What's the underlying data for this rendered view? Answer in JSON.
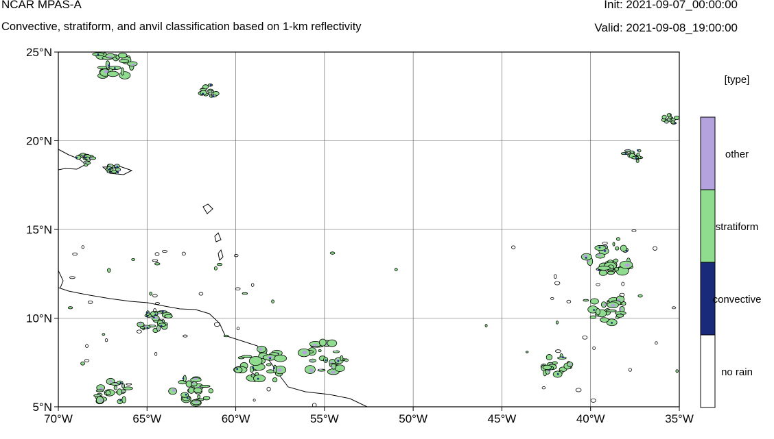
{
  "header": {
    "title": "NCAR MPAS-A",
    "subtitle": "Convective, stratiform, and anvil classification based on 1-km reflectivity",
    "init": "Init: 2021-09-07_00:00:00",
    "valid": "Valid: 2021-09-08_19:00:00"
  },
  "map": {
    "lon_range": [
      -70,
      -35
    ],
    "lat_range": [
      5,
      25
    ],
    "lon_ticks": [
      {
        "value": -70,
        "label": "70°W"
      },
      {
        "value": -65,
        "label": "65°W"
      },
      {
        "value": -60,
        "label": "60°W"
      },
      {
        "value": -55,
        "label": "55°W"
      },
      {
        "value": -50,
        "label": "50°W"
      },
      {
        "value": -45,
        "label": "45°W"
      },
      {
        "value": -40,
        "label": "40°W"
      },
      {
        "value": -35,
        "label": "35°W"
      }
    ],
    "lat_ticks": [
      {
        "value": 25,
        "label": "25°N"
      },
      {
        "value": 20,
        "label": "20°N"
      },
      {
        "value": 15,
        "label": "15°N"
      },
      {
        "value": 10,
        "label": "10°N"
      },
      {
        "value": 5,
        "label": "5°N"
      }
    ],
    "grid": true,
    "colors": {
      "stratiform": "#8fdc8f",
      "other": "#b3a2dd",
      "convective": "#1a2a7a",
      "contour": "#000000"
    },
    "features": [
      {
        "name": "hispaniola-cells",
        "lon": -67.0,
        "lat": 24.3,
        "size": 1.2,
        "type": "stratiform"
      },
      {
        "name": "virgin-islands-cells",
        "lon": -61.5,
        "lat": 22.8,
        "size": 0.5,
        "type": "stratiform"
      },
      {
        "name": "lesser-antilles-cells",
        "lon": -68.5,
        "lat": 18.9,
        "size": 0.5,
        "type": "stratiform"
      },
      {
        "name": "puerto-rico-cells",
        "lon": -66.8,
        "lat": 18.4,
        "size": 0.4,
        "type": "stratiform"
      },
      {
        "name": "guiana-coast-cluster",
        "lon": -58.5,
        "lat": 7.3,
        "size": 1.4,
        "type": "stratiform"
      },
      {
        "name": "atlantic-cluster-east",
        "lon": -55.0,
        "lat": 7.8,
        "size": 1.3,
        "type": "stratiform"
      },
      {
        "name": "venezuela-cells",
        "lon": -64.5,
        "lat": 9.8,
        "size": 0.9,
        "type": "stratiform"
      },
      {
        "name": "colombia-cells",
        "lon": -67.0,
        "lat": 5.8,
        "size": 1.0,
        "type": "stratiform"
      },
      {
        "name": "amazon-cells",
        "lon": -62.5,
        "lat": 5.9,
        "size": 1.1,
        "type": "stratiform"
      },
      {
        "name": "atlantic-wave-north",
        "lon": -39.0,
        "lat": 13.3,
        "size": 1.3,
        "type": "stratiform"
      },
      {
        "name": "atlantic-wave-south",
        "lon": -39.0,
        "lat": 10.5,
        "size": 1.1,
        "type": "stratiform"
      },
      {
        "name": "atlantic-wave-tail",
        "lon": -42.0,
        "lat": 7.3,
        "size": 0.9,
        "type": "stratiform"
      },
      {
        "name": "northeast-cells",
        "lon": -35.5,
        "lat": 21.2,
        "size": 0.4,
        "type": "stratiform"
      },
      {
        "name": "northeast-band",
        "lon": -37.5,
        "lat": 19.2,
        "size": 0.6,
        "type": "stratiform"
      }
    ]
  },
  "legend": {
    "title": "[type]",
    "categories": [
      {
        "label": "other",
        "color": "#b3a2dd"
      },
      {
        "label": "stratiform",
        "color": "#8fdc8f"
      },
      {
        "label": "convective",
        "color": "#1a2a7a"
      },
      {
        "label": "no rain",
        "color": "#ffffff"
      }
    ]
  }
}
